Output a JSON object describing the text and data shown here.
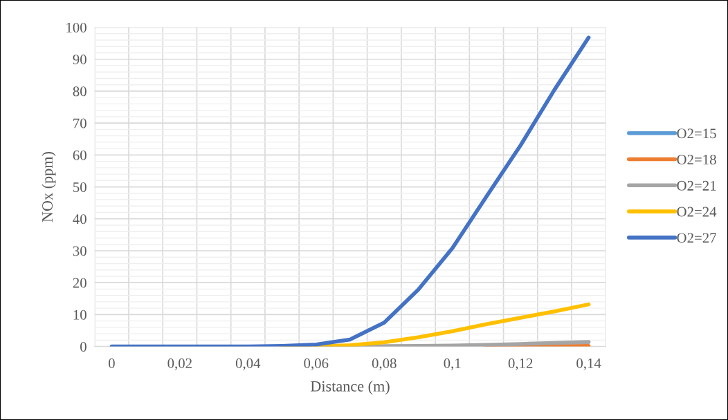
{
  "chart_data": {
    "type": "line",
    "xlabel": "Distance (m)",
    "ylabel": "NOx (ppm)",
    "categories": [
      "0",
      null,
      "0,02",
      null,
      "0,04",
      null,
      "0,06",
      null,
      "0,08",
      null,
      "0,1",
      null,
      "0,12",
      null,
      "0,14"
    ],
    "series": [
      {
        "name": "O2=15",
        "color": "#5b9bd5",
        "values": [
          null,
          null,
          null,
          null,
          null,
          null,
          null,
          null,
          null,
          null,
          null,
          null,
          null,
          null,
          null
        ]
      },
      {
        "name": "O2=18",
        "color": "#ed7d31",
        "values": [
          null,
          null,
          null,
          null,
          null,
          null,
          null,
          null,
          null,
          null,
          null,
          0,
          0.1,
          0.1,
          0.2
        ]
      },
      {
        "name": "O2=21",
        "color": "#a5a5a5",
        "values": [
          null,
          null,
          null,
          null,
          null,
          null,
          0,
          0,
          0.1,
          0.2,
          0.3,
          0.5,
          0.8,
          1.1,
          1.4
        ]
      },
      {
        "name": "O2=24",
        "color": "#ffc000",
        "values": [
          null,
          null,
          null,
          null,
          null,
          0,
          0,
          0.4,
          1.3,
          2.9,
          4.8,
          7,
          9,
          11,
          13.2
        ]
      },
      {
        "name": "O2=27",
        "color": "#4472c4",
        "values": [
          0,
          0,
          0,
          0,
          0,
          0.2,
          0.6,
          2.2,
          7.5,
          17.8,
          30.8,
          47,
          63,
          80.5,
          96.8
        ]
      }
    ],
    "ylim": [
      0,
      100
    ],
    "yticks": [
      0,
      10,
      20,
      30,
      40,
      50,
      60,
      70,
      80,
      90,
      100
    ],
    "grid": true,
    "legend": "right",
    "marker": "none",
    "line_style": "solid"
  }
}
